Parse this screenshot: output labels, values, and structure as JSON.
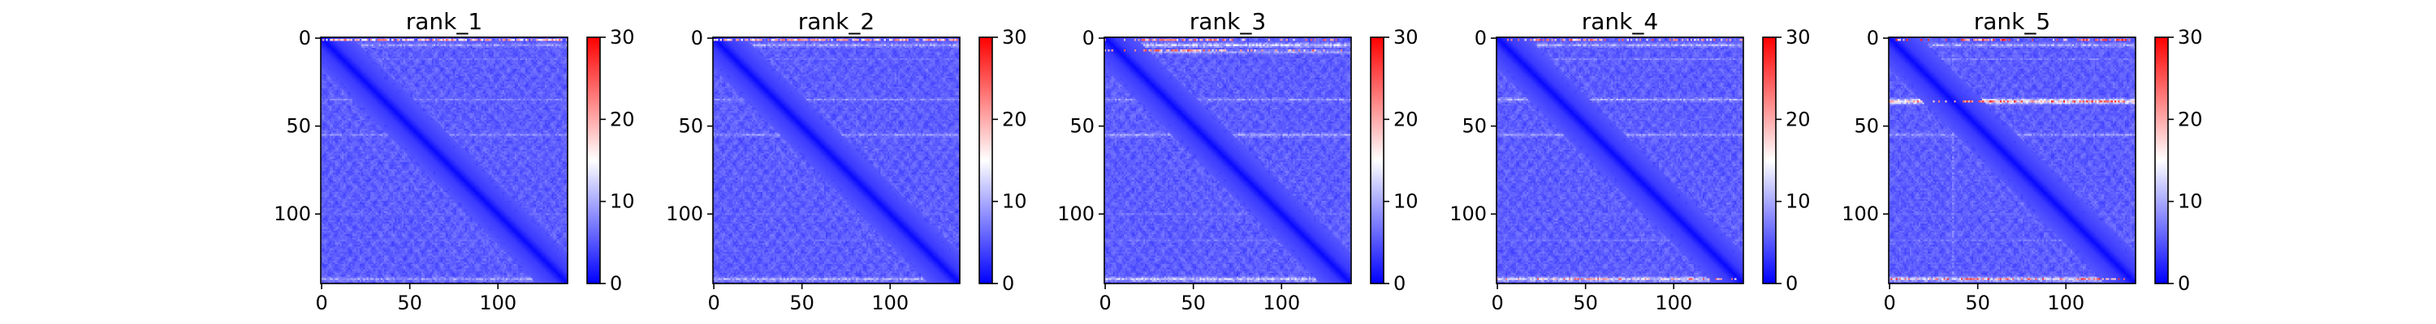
{
  "chart_data": {
    "type": "heatmap",
    "layout": "1x5 grid of heatmaps, each with a vertical colorbar on its right",
    "colormap": "bwr",
    "colormap_colors": {
      "low": "#0000ff",
      "mid": "#ffffff",
      "high": "#ff0000"
    },
    "value_range": [
      0,
      30
    ],
    "matrix_size": 140,
    "x_ticks": [
      0,
      50,
      100
    ],
    "y_ticks": [
      0,
      50,
      100
    ],
    "colorbar_ticks": [
      0,
      10,
      20,
      30
    ],
    "panels": [
      {
        "title": "rank_1",
        "bright_rows": [
          4,
          12,
          35,
          55,
          100,
          115,
          137
        ],
        "row_strength": [
          11,
          8,
          9,
          10,
          7,
          7,
          12
        ],
        "hot_rows": [
          1
        ],
        "hot_cols": [],
        "hot_strength": 24
      },
      {
        "title": "rank_2",
        "bright_rows": [
          4,
          12,
          35,
          55,
          100,
          115,
          137
        ],
        "row_strength": [
          12,
          8,
          10,
          11,
          7,
          7,
          13
        ],
        "hot_rows": [
          1
        ],
        "hot_cols": [],
        "hot_strength": 24
      },
      {
        "title": "rank_3",
        "bright_rows": [
          4,
          8,
          35,
          55,
          100,
          115,
          137
        ],
        "row_strength": [
          15,
          12,
          11,
          12,
          8,
          8,
          15
        ],
        "hot_rows": [
          1,
          7
        ],
        "hot_cols": [
          35,
          55
        ],
        "hot_strength": 26
      },
      {
        "title": "rank_4",
        "bright_rows": [
          4,
          12,
          35,
          55,
          100,
          115,
          137
        ],
        "row_strength": [
          12,
          9,
          12,
          11,
          7,
          8,
          16
        ],
        "hot_rows": [
          1,
          137
        ],
        "hot_cols": [
          50
        ],
        "hot_strength": 26
      },
      {
        "title": "rank_5",
        "bright_rows": [
          4,
          12,
          36,
          55,
          100,
          115,
          137
        ],
        "row_strength": [
          12,
          9,
          20,
          11,
          7,
          8,
          16
        ],
        "hot_rows": [
          1,
          36,
          137
        ],
        "hot_cols": [
          120,
          55
        ],
        "hot_strength": 28
      }
    ]
  }
}
